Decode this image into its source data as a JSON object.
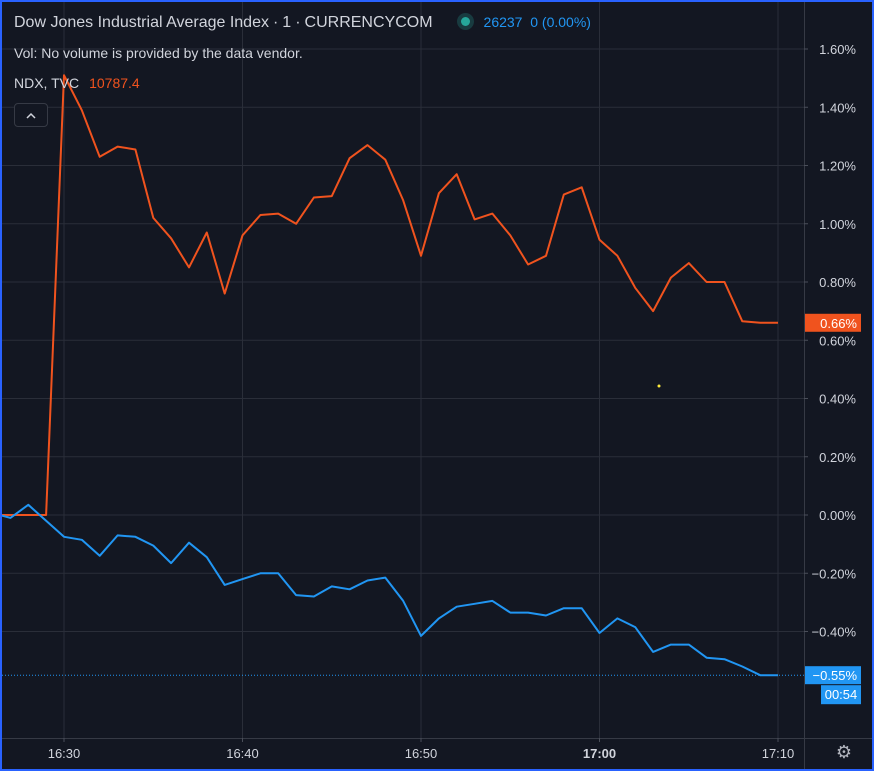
{
  "legend": {
    "symbol_title": "Dow Jones Industrial Average Index",
    "interval": "1",
    "exchange": "CURRENCYCOM",
    "last_price": "26237",
    "change": "0 (0.00%)",
    "volume_note": "Vol: No volume is provided by the data vendor.",
    "compare_symbol": "NDX, TVC",
    "compare_value": "10787.4"
  },
  "controls": {
    "collapse_icon": "chevron-up-icon",
    "settings_icon": "gear-icon"
  },
  "colors": {
    "background": "#131722",
    "grid": "#2a2e39",
    "dji_line": "#2196f3",
    "ndx_line": "#f0531e",
    "border": "#2962ff"
  },
  "chart_data": {
    "type": "line",
    "y_unit": "percent change",
    "ylim": [
      -0.8,
      1.7
    ],
    "y_ticks": [
      "1.60%",
      "1.40%",
      "1.20%",
      "1.00%",
      "0.80%",
      "0.60%",
      "0.40%",
      "0.20%",
      "0.00%",
      "−0.20%",
      "−0.40%"
    ],
    "y_tick_values": [
      1.6,
      1.4,
      1.2,
      1.0,
      0.8,
      0.6,
      0.4,
      0.2,
      0.0,
      -0.2,
      -0.4
    ],
    "x_ticks": [
      "16:30",
      "16:40",
      "16:50",
      "17:00",
      "17:10"
    ],
    "x_tick_values": [
      990,
      1000,
      1010,
      1020,
      1030
    ],
    "xlim": [
      986.4,
      1031.6
    ],
    "grid": true,
    "price_labels": [
      {
        "series": "NDX, TVC",
        "text": "0.66%"
      },
      {
        "series": "DJI",
        "text": "−0.55%"
      }
    ],
    "countdown": "00:54",
    "series": [
      {
        "name": "NDX, TVC",
        "color": "#f0531e",
        "x": [
          986.4,
          987.5,
          988.5,
          989.0,
          990.0,
          991.0,
          992.0,
          993.0,
          994.0,
          995.0,
          996.0,
          997.0,
          998.0,
          999.0,
          1000.0,
          1001.0,
          1002.0,
          1003.0,
          1004.0,
          1005.0,
          1006.0,
          1007.0,
          1008.0,
          1009.0,
          1010.0,
          1011.0,
          1012.0,
          1013.0,
          1014.0,
          1015.0,
          1016.0,
          1017.0,
          1018.0,
          1019.0,
          1020.0,
          1021.0,
          1022.0,
          1023.0,
          1024.0,
          1025.0,
          1026.0,
          1027.0,
          1028.0,
          1029.0,
          1030.0
        ],
        "y": [
          0.0,
          0.0,
          0.0,
          0.0,
          1.51,
          1.39,
          1.23,
          1.265,
          1.255,
          1.02,
          0.95,
          0.85,
          0.97,
          0.76,
          0.96,
          1.03,
          1.035,
          1.0,
          1.09,
          1.095,
          1.225,
          1.27,
          1.22,
          1.08,
          0.89,
          1.105,
          1.17,
          1.015,
          1.035,
          0.96,
          0.86,
          0.89,
          1.1,
          1.125,
          0.945,
          0.89,
          0.78,
          0.7,
          0.815,
          0.865,
          0.8,
          0.8,
          0.665,
          0.66,
          0.66
        ]
      },
      {
        "name": "DJI",
        "color": "#2196f3",
        "x": [
          986.4,
          987.0,
          988.0,
          989.0,
          990.0,
          991.0,
          992.0,
          993.0,
          994.0,
          995.0,
          996.0,
          997.0,
          998.0,
          999.0,
          1000.0,
          1001.0,
          1002.0,
          1003.0,
          1004.0,
          1005.0,
          1006.0,
          1007.0,
          1008.0,
          1009.0,
          1010.0,
          1011.0,
          1012.0,
          1013.0,
          1014.0,
          1015.0,
          1016.0,
          1017.0,
          1018.0,
          1019.0,
          1020.0,
          1021.0,
          1022.0,
          1023.0,
          1024.0,
          1025.0,
          1026.0,
          1027.0,
          1028.0,
          1029.0,
          1030.0
        ],
        "y": [
          0.0,
          -0.01,
          0.035,
          -0.02,
          -0.075,
          -0.085,
          -0.14,
          -0.07,
          -0.075,
          -0.105,
          -0.165,
          -0.095,
          -0.145,
          -0.24,
          -0.22,
          -0.2,
          -0.2,
          -0.275,
          -0.28,
          -0.245,
          -0.255,
          -0.225,
          -0.215,
          -0.295,
          -0.415,
          -0.355,
          -0.315,
          -0.305,
          -0.295,
          -0.335,
          -0.335,
          -0.345,
          -0.32,
          -0.32,
          -0.405,
          -0.355,
          -0.385,
          -0.47,
          -0.445,
          -0.445,
          -0.49,
          -0.495,
          -0.52,
          -0.55,
          -0.55
        ]
      }
    ]
  }
}
